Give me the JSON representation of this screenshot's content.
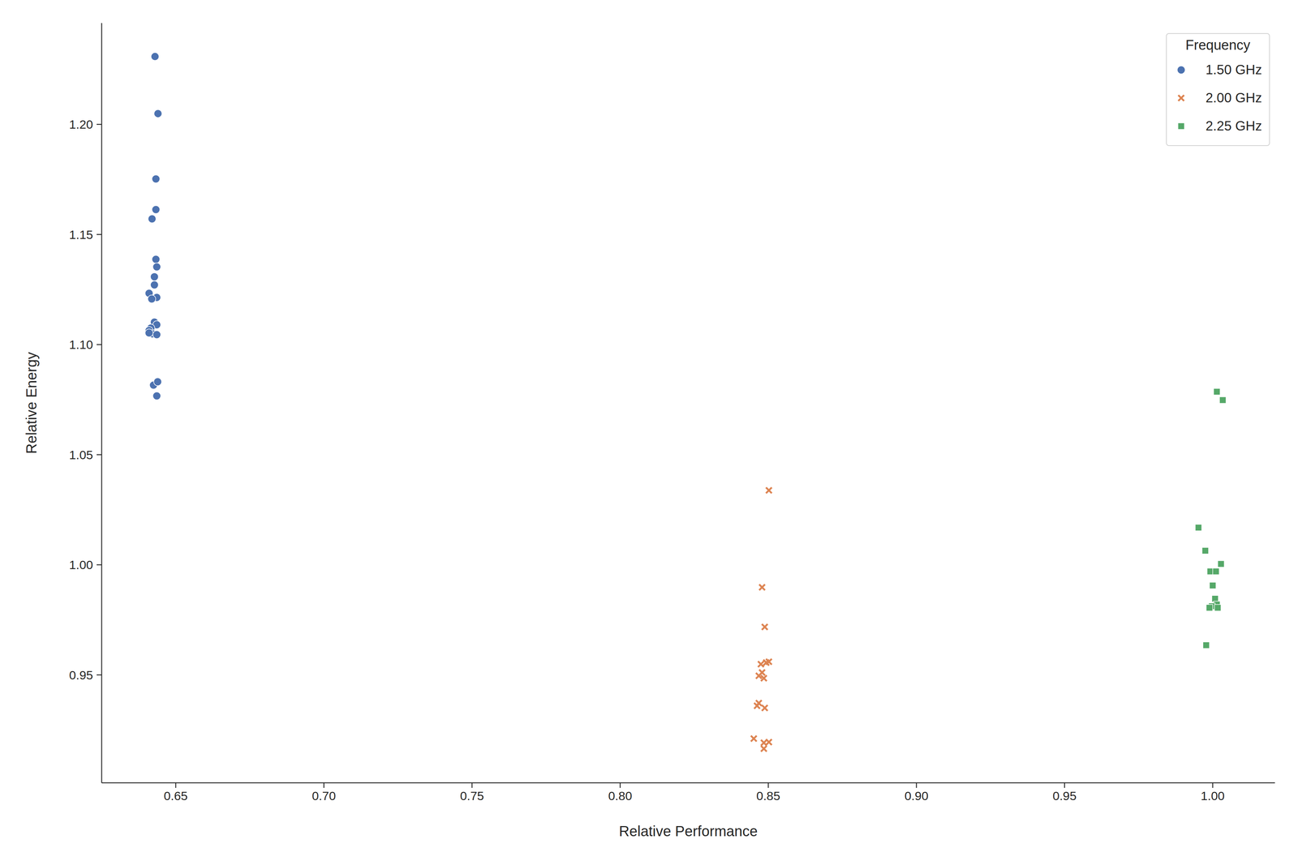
{
  "chart_data": {
    "type": "scatter",
    "x_label": "Relative Performance",
    "y_label": "Relative Energy",
    "legend": "upper right",
    "legend_title": "Frequency",
    "grid": false,
    "xlim": [
      0.625,
      1.021
    ],
    "ylim": [
      0.901,
      1.246
    ],
    "xticks": [
      0.65,
      {
        "value": 0.7,
        "label": "0.70"
      },
      0.75,
      {
        "value": 0.8,
        "label": "0.80"
      },
      0.85,
      {
        "value": 0.9,
        "label": "0.90"
      },
      0.95,
      {
        "value": 1.0,
        "label": "1.00"
      }
    ],
    "yticks": [
      0.95,
      {
        "value": 1.0,
        "label": "1.00"
      },
      1.05,
      {
        "value": 1.1,
        "label": "1.10"
      },
      1.15,
      {
        "value": 1.2,
        "label": "1.20"
      }
    ],
    "series": [
      {
        "name": "1.50 GHz",
        "color": "#4c72b0",
        "marker": "circle",
        "x": [
          0.643,
          0.644,
          0.6433,
          0.6433,
          0.642,
          0.6433,
          0.6436,
          0.6428,
          0.6428,
          0.641,
          0.6436,
          0.6419,
          0.6428,
          0.6436,
          0.6416,
          0.641,
          0.6422,
          0.6436,
          0.641,
          0.6425,
          0.6439,
          0.6436
        ],
        "values": [
          1.2308,
          1.2049,
          1.1752,
          1.1613,
          1.1571,
          1.1387,
          1.1353,
          1.1308,
          1.1271,
          1.1233,
          1.1214,
          1.1207,
          1.1102,
          1.109,
          1.1075,
          1.1064,
          1.1049,
          1.1045,
          1.1053,
          1.0816,
          1.0831,
          1.0767
        ]
      },
      {
        "name": "2.00 GHz",
        "color": "#dd8452",
        "marker": "x",
        "x": [
          0.8502,
          0.8479,
          0.8488,
          0.8475,
          0.8493,
          0.8502,
          0.8479,
          0.8468,
          0.8485,
          0.8468,
          0.8462,
          0.8488,
          0.8451,
          0.8485,
          0.8502,
          0.8485
        ],
        "values": [
          1.0338,
          0.9898,
          0.9718,
          0.9549,
          0.9556,
          0.956,
          0.9511,
          0.9496,
          0.9485,
          0.9372,
          0.936,
          0.935,
          0.9211,
          0.9192,
          0.9195,
          0.9165
        ]
      },
      {
        "name": "2.25 GHz",
        "color": "#55a868",
        "marker": "square",
        "x": [
          1.0014,
          1.0034,
          0.9952,
          0.9975,
          1.0028,
          0.9992,
          1.0011,
          1.0,
          1.0008,
          1.0014,
          0.9997,
          0.9989,
          1.0017,
          0.9978
        ],
        "values": [
          1.0786,
          1.0748,
          1.0169,
          1.0064,
          1.0004,
          0.997,
          0.997,
          0.9906,
          0.9846,
          0.982,
          0.9812,
          0.9805,
          0.9805,
          0.9635
        ]
      }
    ]
  }
}
